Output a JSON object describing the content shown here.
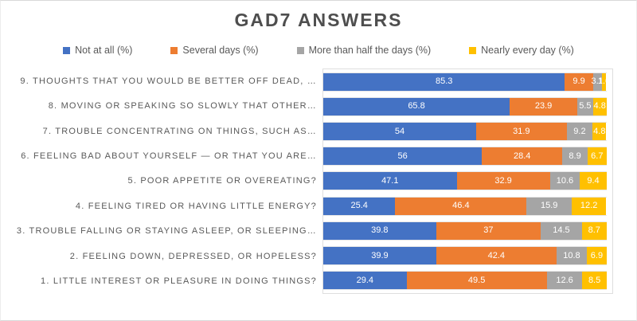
{
  "title": "GAD7 ANSWERS",
  "colors": {
    "not_at_all": "#4472C4",
    "several_days": "#ED7D31",
    "more_than_half": "#A5A5A5",
    "nearly_every_day": "#FFC000",
    "title_text": "#4e4e4e",
    "axis_text": "#595959",
    "plot_border": "#dedede"
  },
  "legend": {
    "items": [
      {
        "label": "Not at all (%)",
        "color": "#4472C4"
      },
      {
        "label": "Several days (%)",
        "color": "#ED7D31"
      },
      {
        "label": "More than half the days (%)",
        "color": "#A5A5A5"
      },
      {
        "label": "Nearly every day (%)",
        "color": "#FFC000"
      }
    ]
  },
  "chart_data": {
    "type": "bar",
    "orientation": "horizontal",
    "stacked": true,
    "title": "GAD7 ANSWERS",
    "xlabel": "",
    "ylabel": "",
    "xlim": [
      0,
      100
    ],
    "grid": "category-band-lines",
    "legend_position": "top",
    "value_labels": "inside-white",
    "categories": [
      "9. THOUGHTS THAT YOU WOULD BE BETTER OFF DEAD, …",
      "8. MOVING OR SPEAKING SO SLOWLY THAT OTHER…",
      "7. TROUBLE CONCENTRATING ON THINGS, SUCH AS…",
      "6. FEELING BAD ABOUT YOURSELF — OR THAT YOU ARE…",
      "5. POOR APPETITE OR OVEREATING?",
      "4. FEELING TIRED OR HAVING LITTLE ENERGY?",
      "3. TROUBLE FALLING OR STAYING ASLEEP, OR SLEEPING…",
      "2. FEELING DOWN, DEPRESSED, OR HOPELESS?",
      "1. LITTLE INTEREST OR PLEASURE IN DOING THINGS?"
    ],
    "series": [
      {
        "name": "Not at all (%)",
        "color": "#4472C4",
        "values": [
          85.3,
          65.8,
          54,
          56,
          47.1,
          25.4,
          39.8,
          39.9,
          29.4
        ],
        "labels": [
          "85.3",
          "65.8",
          "54",
          "56",
          "47.1",
          "25.4",
          "39.8",
          "39.9",
          "29.4"
        ]
      },
      {
        "name": "Several days (%)",
        "color": "#ED7D31",
        "values": [
          9.9,
          23.9,
          31.9,
          28.4,
          32.9,
          46.4,
          37,
          42.4,
          49.5
        ],
        "labels": [
          "9.9",
          "23.9",
          "31.9",
          "28.4",
          "32.9",
          "46.4",
          "37",
          "42.4",
          "49.5"
        ]
      },
      {
        "name": "More than half the days (%)",
        "color": "#A5A5A5",
        "values": [
          3.1,
          5.5,
          9.2,
          8.9,
          10.6,
          15.9,
          14.5,
          10.8,
          12.6
        ],
        "labels": [
          "3.1",
          "5.5",
          "9.2",
          "8.9",
          "10.6",
          "15.9",
          "14.5",
          "10.8",
          "12.6"
        ]
      },
      {
        "name": "Nearly every day (%)",
        "color": "#FFC000",
        "values": [
          1.6,
          4.8,
          4.8,
          6.7,
          9.4,
          12.2,
          8.7,
          6.9,
          8.5
        ],
        "labels": [
          "1.6",
          "4.8",
          "4.8",
          "6.7",
          "9.4",
          "12.2",
          "8.7",
          "6.9",
          "8.5"
        ]
      }
    ]
  }
}
